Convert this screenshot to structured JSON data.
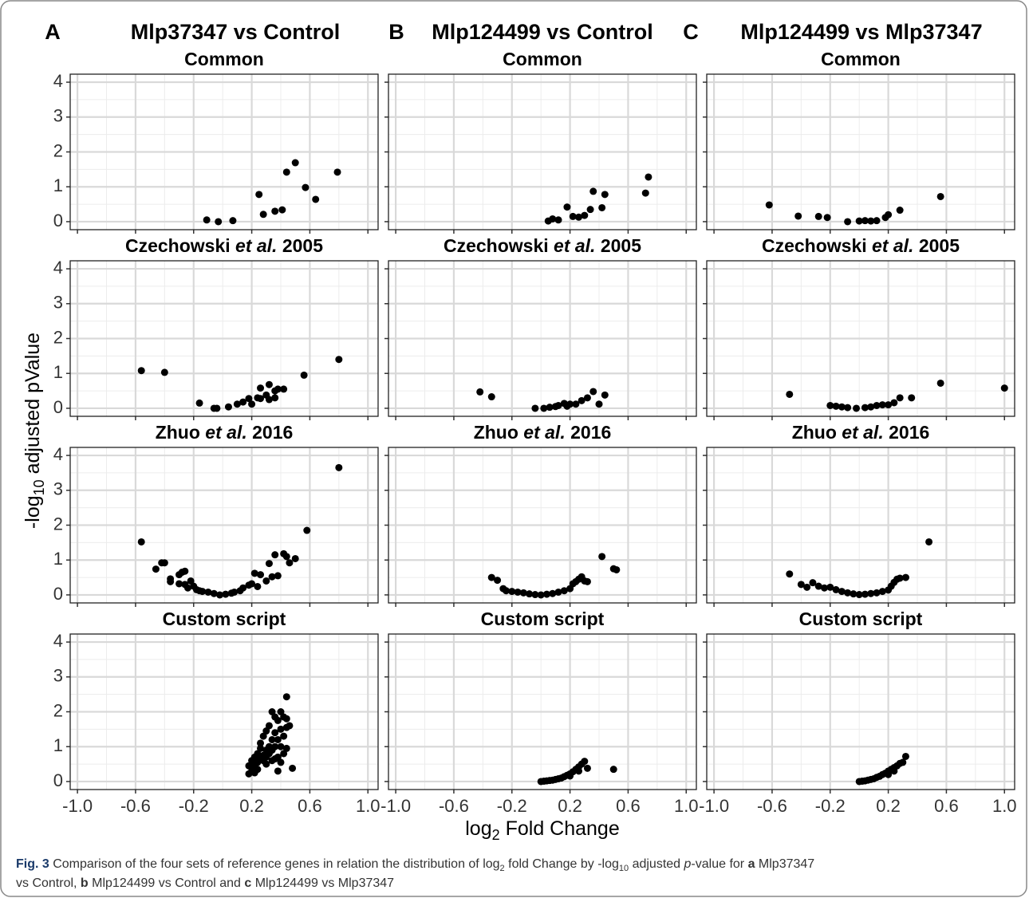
{
  "figure": {
    "columns": [
      {
        "letter": "A",
        "title": "Mlp37347 vs Control"
      },
      {
        "letter": "B",
        "title": "Mlp124499 vs Control"
      },
      {
        "letter": "C",
        "title": "Mlp124499 vs Mlp37347"
      }
    ],
    "y_label": [
      "-log",
      "10",
      " adjusted pValue"
    ],
    "x_label": [
      "log",
      "2",
      " Fold Change"
    ],
    "caption": [
      [
        "Fig. 3",
        " Comparison of the four sets of reference genes in relation the distribution of log",
        "2",
        " fold Change by -log",
        "10",
        " adjusted ",
        "p",
        "-value for ",
        "a",
        " Mlp37347"
      ],
      [
        "vs Control, ",
        "b",
        " Mlp124499 vs Control and ",
        "c",
        " Mlp124499 vs Mlp37347"
      ]
    ]
  },
  "chart_data": [
    {
      "type": "scatter",
      "title": [
        "Common"
      ],
      "color": "#000000",
      "xlim": [
        -1.05,
        1.07
      ],
      "ylim": [
        -0.23,
        4.23
      ],
      "xticks": [
        {
          "value": -1.0,
          "label": "-1.0"
        },
        -0.6,
        -0.2,
        0.2,
        0.6,
        {
          "value": 1.0,
          "label": "1.0"
        }
      ],
      "yticks": [
        0,
        1,
        2,
        3,
        4
      ],
      "xminor": [
        -0.8,
        -0.4,
        0,
        0.4,
        0.8
      ],
      "yminor": [
        0.5,
        1.5,
        2.5,
        3.5
      ],
      "x": [
        -0.11,
        -0.03,
        0.07,
        0.25,
        0.28,
        0.36,
        0.41,
        0.44,
        0.5,
        0.57,
        0.64,
        0.79
      ],
      "values": [
        0.05,
        0,
        0.03,
        0.78,
        0.21,
        0.3,
        0.34,
        1.42,
        1.69,
        0.98,
        0.64,
        1.42
      ]
    },
    {
      "type": "scatter",
      "title": [
        "Common"
      ],
      "color": "#000000",
      "xlim": [
        -1.05,
        1.07
      ],
      "ylim": [
        -0.23,
        4.23
      ],
      "xticks": [
        {
          "value": -1.0,
          "label": "-1.0"
        },
        -0.6,
        -0.2,
        0.2,
        0.6,
        {
          "value": 1.0,
          "label": "1.0"
        }
      ],
      "yticks": [
        0,
        1,
        2,
        3,
        4
      ],
      "xminor": [
        -0.8,
        -0.4,
        0,
        0.4,
        0.8
      ],
      "yminor": [
        0.5,
        1.5,
        2.5,
        3.5
      ],
      "x": [
        0.05,
        0.08,
        0.12,
        0.18,
        0.22,
        0.26,
        0.3,
        0.34,
        0.36,
        0.42,
        0.44,
        0.72,
        0.74
      ],
      "values": [
        0.02,
        0.08,
        0.05,
        0.42,
        0.15,
        0.13,
        0.18,
        0.35,
        0.87,
        0.4,
        0.78,
        0.82,
        1.28
      ]
    },
    {
      "type": "scatter",
      "title": [
        "Common"
      ],
      "color": "#000000",
      "xlim": [
        -1.05,
        1.07
      ],
      "ylim": [
        -0.23,
        4.23
      ],
      "xticks": [
        {
          "value": -1.0,
          "label": "-1.0"
        },
        -0.6,
        -0.2,
        0.2,
        0.6,
        {
          "value": 1.0,
          "label": "1.0"
        }
      ],
      "yticks": [
        0,
        1,
        2,
        3,
        4
      ],
      "xminor": [
        -0.8,
        -0.4,
        0,
        0.4,
        0.8
      ],
      "yminor": [
        0.5,
        1.5,
        2.5,
        3.5
      ],
      "x": [
        -0.62,
        -0.42,
        -0.28,
        -0.22,
        -0.08,
        0.0,
        0.04,
        0.08,
        0.12,
        0.18,
        0.2,
        0.28,
        0.56
      ],
      "values": [
        0.48,
        0.16,
        0.15,
        0.12,
        0.0,
        0.02,
        0.03,
        0.02,
        0.03,
        0.12,
        0.2,
        0.33,
        0.72
      ]
    },
    {
      "type": "scatter",
      "title": [
        "Czechowski ",
        "et al.",
        " 2005"
      ],
      "color": "#000000",
      "xlim": [
        -1.05,
        1.07
      ],
      "ylim": [
        -0.23,
        4.23
      ],
      "xticks": [
        {
          "value": -1.0,
          "label": "-1.0"
        },
        -0.6,
        -0.2,
        0.2,
        0.6,
        {
          "value": 1.0,
          "label": "1.0"
        }
      ],
      "yticks": [
        0,
        1,
        2,
        3,
        4
      ],
      "xminor": [
        -0.8,
        -0.4,
        0,
        0.4,
        0.8
      ],
      "yminor": [
        0.5,
        1.5,
        2.5,
        3.5
      ],
      "x": [
        -0.56,
        -0.4,
        -0.16,
        -0.06,
        -0.04,
        0.04,
        0.1,
        0.14,
        0.18,
        0.2,
        0.24,
        0.26,
        0.26,
        0.3,
        0.32,
        0.32,
        0.36,
        0.36,
        0.38,
        0.42,
        0.56,
        0.8
      ],
      "values": [
        1.08,
        1.03,
        0.15,
        0.0,
        0.0,
        0.04,
        0.12,
        0.18,
        0.28,
        0.12,
        0.3,
        0.58,
        0.28,
        0.38,
        0.68,
        0.25,
        0.3,
        0.5,
        0.55,
        0.55,
        0.95,
        1.4
      ]
    },
    {
      "type": "scatter",
      "title": [
        "Czechowski ",
        "et al.",
        " 2005"
      ],
      "color": "#000000",
      "xlim": [
        -1.05,
        1.07
      ],
      "ylim": [
        -0.23,
        4.23
      ],
      "xticks": [
        {
          "value": -1.0,
          "label": "-1.0"
        },
        -0.6,
        -0.2,
        0.2,
        0.6,
        {
          "value": 1.0,
          "label": "1.0"
        }
      ],
      "yticks": [
        0,
        1,
        2,
        3,
        4
      ],
      "xminor": [
        -0.8,
        -0.4,
        0,
        0.4,
        0.8
      ],
      "yminor": [
        0.5,
        1.5,
        2.5,
        3.5
      ],
      "x": [
        -0.42,
        -0.34,
        -0.04,
        0.02,
        0.06,
        0.1,
        0.12,
        0.16,
        0.18,
        0.2,
        0.24,
        0.28,
        0.32,
        0.36,
        0.4,
        0.44
      ],
      "values": [
        0.47,
        0.33,
        0.0,
        0.0,
        0.03,
        0.05,
        0.08,
        0.14,
        0.06,
        0.12,
        0.12,
        0.22,
        0.3,
        0.48,
        0.12,
        0.38
      ]
    },
    {
      "type": "scatter",
      "title": [
        "Czechowski ",
        "et al.",
        " 2005"
      ],
      "color": "#000000",
      "xlim": [
        -1.05,
        1.07
      ],
      "ylim": [
        -0.23,
        4.23
      ],
      "xticks": [
        {
          "value": -1.0,
          "label": "-1.0"
        },
        -0.6,
        -0.2,
        0.2,
        0.6,
        {
          "value": 1.0,
          "label": "1.0"
        }
      ],
      "yticks": [
        0,
        1,
        2,
        3,
        4
      ],
      "xminor": [
        -0.8,
        -0.4,
        0,
        0.4,
        0.8
      ],
      "yminor": [
        0.5,
        1.5,
        2.5,
        3.5
      ],
      "x": [
        -0.48,
        -0.2,
        -0.16,
        -0.12,
        -0.08,
        -0.02,
        0.04,
        0.08,
        0.12,
        0.16,
        0.2,
        0.24,
        0.28,
        0.36,
        0.56,
        1.0
      ],
      "values": [
        0.4,
        0.08,
        0.06,
        0.04,
        0.02,
        0.0,
        0.02,
        0.04,
        0.08,
        0.1,
        0.1,
        0.16,
        0.3,
        0.3,
        0.72,
        0.58
      ]
    },
    {
      "type": "scatter",
      "title": [
        "Zhuo ",
        "et al.",
        " 2016"
      ],
      "color": "#000000",
      "xlim": [
        -1.05,
        1.07
      ],
      "ylim": [
        -0.23,
        4.23
      ],
      "xticks": [
        {
          "value": -1.0,
          "label": "-1.0"
        },
        -0.6,
        -0.2,
        0.2,
        0.6,
        {
          "value": 1.0,
          "label": "1.0"
        }
      ],
      "yticks": [
        0,
        1,
        2,
        3,
        4
      ],
      "xminor": [
        -0.8,
        -0.4,
        0,
        0.4,
        0.8
      ],
      "yminor": [
        0.5,
        1.5,
        2.5,
        3.5
      ],
      "x": [
        -0.56,
        -0.46,
        -0.42,
        -0.4,
        -0.36,
        -0.36,
        -0.3,
        -0.28,
        -0.26,
        -0.3,
        -0.26,
        -0.24,
        -0.22,
        -0.2,
        -0.18,
        -0.16,
        -0.14,
        -0.1,
        -0.06,
        -0.02,
        0.02,
        0.06,
        0.08,
        0.12,
        0.14,
        0.18,
        0.2,
        0.22,
        0.24,
        0.26,
        0.3,
        0.32,
        0.34,
        0.36,
        0.38,
        0.42,
        0.44,
        0.46,
        0.5,
        0.58,
        0.8
      ],
      "values": [
        1.52,
        0.74,
        0.92,
        0.92,
        0.38,
        0.46,
        0.58,
        0.65,
        0.68,
        0.32,
        0.3,
        0.2,
        0.4,
        0.25,
        0.15,
        0.12,
        0.1,
        0.08,
        0.04,
        0.0,
        0.02,
        0.05,
        0.08,
        0.12,
        0.2,
        0.28,
        0.32,
        0.62,
        0.24,
        0.58,
        0.4,
        0.9,
        0.52,
        1.15,
        0.55,
        1.18,
        1.1,
        0.92,
        1.04,
        1.85,
        3.65
      ]
    },
    {
      "type": "scatter",
      "title": [
        "Zhuo ",
        "et al.",
        " 2016"
      ],
      "color": "#000000",
      "xlim": [
        -1.05,
        1.07
      ],
      "ylim": [
        -0.23,
        4.23
      ],
      "xticks": [
        {
          "value": -1.0,
          "label": "-1.0"
        },
        -0.6,
        -0.2,
        0.2,
        0.6,
        {
          "value": 1.0,
          "label": "1.0"
        }
      ],
      "yticks": [
        0,
        1,
        2,
        3,
        4
      ],
      "xminor": [
        -0.8,
        -0.4,
        0,
        0.4,
        0.8
      ],
      "yminor": [
        0.5,
        1.5,
        2.5,
        3.5
      ],
      "x": [
        -0.34,
        -0.3,
        -0.26,
        -0.24,
        -0.2,
        -0.16,
        -0.12,
        -0.08,
        -0.04,
        0.0,
        0.04,
        0.08,
        0.12,
        0.16,
        0.2,
        0.22,
        0.24,
        0.26,
        0.28,
        0.3,
        0.32,
        0.42,
        0.5,
        0.52
      ],
      "values": [
        0.5,
        0.42,
        0.18,
        0.12,
        0.1,
        0.08,
        0.06,
        0.03,
        0.01,
        0.0,
        0.02,
        0.04,
        0.08,
        0.12,
        0.18,
        0.32,
        0.38,
        0.45,
        0.52,
        0.4,
        0.38,
        1.1,
        0.75,
        0.72
      ]
    },
    {
      "type": "scatter",
      "title": [
        "Zhuo ",
        "et al.",
        " 2016"
      ],
      "color": "#000000",
      "xlim": [
        -1.05,
        1.07
      ],
      "ylim": [
        -0.23,
        4.23
      ],
      "xticks": [
        {
          "value": -1.0,
          "label": "-1.0"
        },
        -0.6,
        -0.2,
        0.2,
        0.6,
        {
          "value": 1.0,
          "label": "1.0"
        }
      ],
      "yticks": [
        0,
        1,
        2,
        3,
        4
      ],
      "xminor": [
        -0.8,
        -0.4,
        0,
        0.4,
        0.8
      ],
      "yminor": [
        0.5,
        1.5,
        2.5,
        3.5
      ],
      "x": [
        -0.48,
        -0.4,
        -0.36,
        -0.32,
        -0.28,
        -0.24,
        -0.2,
        -0.16,
        -0.12,
        -0.08,
        -0.04,
        0.0,
        0.04,
        0.08,
        0.12,
        0.16,
        0.2,
        0.22,
        0.24,
        0.26,
        0.28,
        0.32,
        0.48
      ],
      "values": [
        0.6,
        0.3,
        0.22,
        0.35,
        0.25,
        0.2,
        0.22,
        0.15,
        0.1,
        0.06,
        0.03,
        0.01,
        0.02,
        0.04,
        0.06,
        0.1,
        0.14,
        0.25,
        0.36,
        0.45,
        0.48,
        0.5,
        1.52
      ]
    },
    {
      "type": "scatter",
      "title": [
        "Custom script"
      ],
      "color": "#000000",
      "xlim": [
        -1.05,
        1.07
      ],
      "ylim": [
        -0.23,
        4.23
      ],
      "xticks": [
        {
          "value": -1.0,
          "label": "-1.0"
        },
        -0.6,
        -0.2,
        0.2,
        0.6,
        {
          "value": 1.0,
          "label": "1.0"
        }
      ],
      "yticks": [
        0,
        1,
        2,
        3,
        4
      ],
      "xminor": [
        -0.8,
        -0.4,
        0,
        0.4,
        0.8
      ],
      "yminor": [
        0.5,
        1.5,
        2.5,
        3.5
      ],
      "x": [
        0.18,
        0.18,
        0.2,
        0.2,
        0.22,
        0.22,
        0.24,
        0.24,
        0.26,
        0.26,
        0.26,
        0.28,
        0.28,
        0.28,
        0.3,
        0.3,
        0.3,
        0.32,
        0.32,
        0.32,
        0.34,
        0.34,
        0.34,
        0.36,
        0.36,
        0.36,
        0.38,
        0.38,
        0.38,
        0.4,
        0.4,
        0.4,
        0.42,
        0.42,
        0.42,
        0.44,
        0.44,
        0.44,
        0.46,
        0.44,
        0.48,
        0.24,
        0.22,
        0.3,
        0.34,
        0.38,
        0.4,
        0.36
      ],
      "values": [
        0.45,
        0.22,
        0.3,
        0.6,
        0.45,
        0.7,
        0.55,
        0.8,
        0.65,
        0.95,
        1.1,
        0.75,
        1.3,
        0.6,
        0.9,
        1.45,
        0.7,
        1.0,
        1.6,
        0.8,
        1.2,
        2.0,
        0.9,
        1.4,
        1.0,
        0.65,
        1.75,
        1.2,
        0.3,
        2.0,
        1.5,
        1.0,
        1.85,
        1.3,
        0.8,
        2.43,
        1.55,
        0.95,
        1.6,
        1.8,
        0.38,
        0.35,
        0.25,
        0.5,
        0.6,
        0.7,
        0.55,
        1.85
      ]
    },
    {
      "type": "scatter",
      "title": [
        "Custom script"
      ],
      "color": "#000000",
      "xlim": [
        -1.05,
        1.07
      ],
      "ylim": [
        -0.23,
        4.23
      ],
      "xticks": [
        {
          "value": -1.0,
          "label": "-1.0"
        },
        -0.6,
        -0.2,
        0.2,
        0.6,
        {
          "value": 1.0,
          "label": "1.0"
        }
      ],
      "yticks": [
        0,
        1,
        2,
        3,
        4
      ],
      "xminor": [
        -0.8,
        -0.4,
        0,
        0.4,
        0.8
      ],
      "yminor": [
        0.5,
        1.5,
        2.5,
        3.5
      ],
      "x": [
        0.0,
        0.02,
        0.04,
        0.06,
        0.08,
        0.1,
        0.12,
        0.14,
        0.16,
        0.18,
        0.2,
        0.22,
        0.24,
        0.26,
        0.28,
        0.3,
        0.32,
        0.26,
        0.2,
        0.5
      ],
      "values": [
        0.0,
        0.01,
        0.02,
        0.03,
        0.04,
        0.06,
        0.08,
        0.1,
        0.14,
        0.18,
        0.22,
        0.28,
        0.35,
        0.42,
        0.5,
        0.58,
        0.38,
        0.3,
        0.16,
        0.35
      ]
    },
    {
      "type": "scatter",
      "title": [
        "Custom script"
      ],
      "color": "#000000",
      "xlim": [
        -1.05,
        1.07
      ],
      "ylim": [
        -0.23,
        4.23
      ],
      "xticks": [
        {
          "value": -1.0,
          "label": "-1.0"
        },
        -0.6,
        -0.2,
        0.2,
        0.6,
        {
          "value": 1.0,
          "label": "1.0"
        }
      ],
      "yticks": [
        0,
        1,
        2,
        3,
        4
      ],
      "xminor": [
        -0.8,
        -0.4,
        0,
        0.4,
        0.8
      ],
      "yminor": [
        0.5,
        1.5,
        2.5,
        3.5
      ],
      "x": [
        0.0,
        0.02,
        0.04,
        0.06,
        0.08,
        0.1,
        0.12,
        0.14,
        0.16,
        0.18,
        0.2,
        0.22,
        0.24,
        0.26,
        0.28,
        0.3,
        0.32,
        0.2,
        0.24
      ],
      "values": [
        0.0,
        0.01,
        0.02,
        0.04,
        0.06,
        0.08,
        0.12,
        0.15,
        0.2,
        0.24,
        0.3,
        0.35,
        0.4,
        0.45,
        0.52,
        0.55,
        0.72,
        0.2,
        0.3
      ]
    }
  ]
}
